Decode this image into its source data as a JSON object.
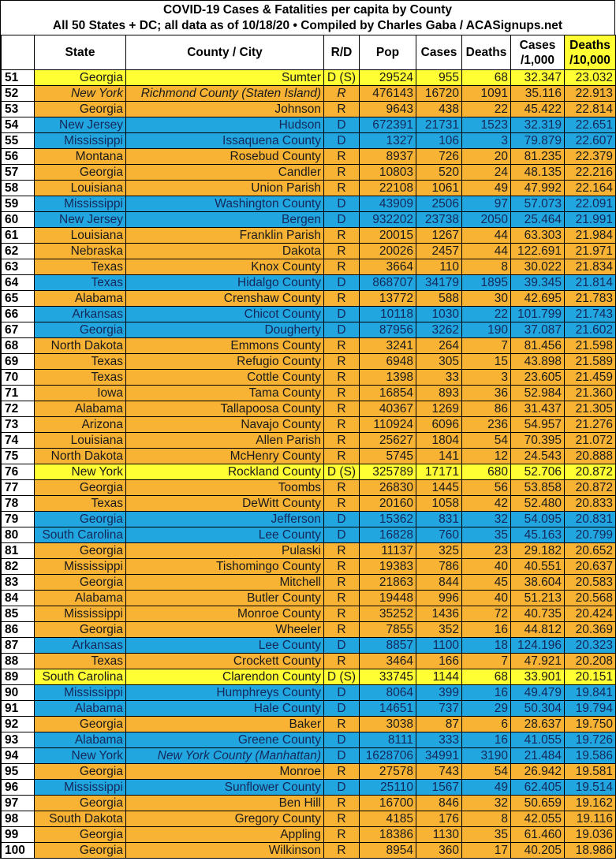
{
  "title_line1": "COVID-19 Cases & Fatalities per capita by County",
  "title_line2": "All 50 States + DC; all data as of 10/18/20  • Compiled by Charles Gaba / ACASignups.net",
  "colors": {
    "R": "#f8b334",
    "D": "#22a6df",
    "swing": "#ffff33",
    "deaths_header": "#ffff33"
  },
  "headers": [
    "",
    "State",
    "County / City",
    "R/D",
    "Pop",
    "Cases",
    "Deaths",
    "Cases\n/1,000",
    "Deaths\n/10,000"
  ],
  "rows": [
    [
      "51",
      "Georgia",
      "Sumter",
      "D (S)",
      "29524",
      "955",
      "68",
      "32.347",
      "23.032",
      "S"
    ],
    [
      "52",
      "New York",
      "Richmond County (Staten Island)",
      "R",
      "476143",
      "16720",
      "1091",
      "35.116",
      "22.913",
      "R",
      "all"
    ],
    [
      "53",
      "Georgia",
      "Johnson",
      "R",
      "9643",
      "438",
      "22",
      "45.422",
      "22.814",
      "R"
    ],
    [
      "54",
      "New Jersey",
      "Hudson",
      "D",
      "672391",
      "21731",
      "1523",
      "32.319",
      "22.651",
      "D"
    ],
    [
      "55",
      "Mississippi",
      "Issaquena County",
      "D",
      "1327",
      "106",
      "3",
      "79.879",
      "22.607",
      "D"
    ],
    [
      "56",
      "Montana",
      "Rosebud County",
      "R",
      "8937",
      "726",
      "20",
      "81.235",
      "22.379",
      "R"
    ],
    [
      "57",
      "Georgia",
      "Candler",
      "R",
      "10803",
      "520",
      "24",
      "48.135",
      "22.216",
      "R"
    ],
    [
      "58",
      "Louisiana",
      "Union Parish",
      "R",
      "22108",
      "1061",
      "49",
      "47.992",
      "22.164",
      "R"
    ],
    [
      "59",
      "Mississippi",
      "Washington County",
      "D",
      "43909",
      "2506",
      "97",
      "57.073",
      "22.091",
      "D"
    ],
    [
      "60",
      "New Jersey",
      "Bergen",
      "D",
      "932202",
      "23738",
      "2050",
      "25.464",
      "21.991",
      "D"
    ],
    [
      "61",
      "Louisiana",
      "Franklin Parish",
      "R",
      "20015",
      "1267",
      "44",
      "63.303",
      "21.984",
      "R"
    ],
    [
      "62",
      "Nebraska",
      "Dakota",
      "R",
      "20026",
      "2457",
      "44",
      "122.691",
      "21.971",
      "R"
    ],
    [
      "63",
      "Texas",
      "Knox County",
      "R",
      "3664",
      "110",
      "8",
      "30.022",
      "21.834",
      "R"
    ],
    [
      "64",
      "Texas",
      "Hidalgo County",
      "D",
      "868707",
      "34179",
      "1895",
      "39.345",
      "21.814",
      "D"
    ],
    [
      "65",
      "Alabama",
      "Crenshaw County",
      "R",
      "13772",
      "588",
      "30",
      "42.695",
      "21.783",
      "R"
    ],
    [
      "66",
      "Arkansas",
      "Chicot County",
      "D",
      "10118",
      "1030",
      "22",
      "101.799",
      "21.743",
      "D"
    ],
    [
      "67",
      "Georgia",
      "Dougherty",
      "D",
      "87956",
      "3262",
      "190",
      "37.087",
      "21.602",
      "D"
    ],
    [
      "68",
      "North Dakota",
      "Emmons County",
      "R",
      "3241",
      "264",
      "7",
      "81.456",
      "21.598",
      "R"
    ],
    [
      "69",
      "Texas",
      "Refugio County",
      "R",
      "6948",
      "305",
      "15",
      "43.898",
      "21.589",
      "R"
    ],
    [
      "70",
      "Texas",
      "Cottle County",
      "R",
      "1398",
      "33",
      "3",
      "23.605",
      "21.459",
      "R"
    ],
    [
      "71",
      "Iowa",
      "Tama County",
      "R",
      "16854",
      "893",
      "36",
      "52.984",
      "21.360",
      "R"
    ],
    [
      "72",
      "Alabama",
      "Tallapoosa County",
      "R",
      "40367",
      "1269",
      "86",
      "31.437",
      "21.305",
      "R"
    ],
    [
      "73",
      "Arizona",
      "Navajo County",
      "R",
      "110924",
      "6096",
      "236",
      "54.957",
      "21.276",
      "R"
    ],
    [
      "74",
      "Louisiana",
      "Allen Parish",
      "R",
      "25627",
      "1804",
      "54",
      "70.395",
      "21.072",
      "R"
    ],
    [
      "75",
      "North Dakota",
      "McHenry County",
      "R",
      "5745",
      "141",
      "12",
      "24.543",
      "20.888",
      "R"
    ],
    [
      "76",
      "New York",
      "Rockland County",
      "D (S)",
      "325789",
      "17171",
      "680",
      "52.706",
      "20.872",
      "S"
    ],
    [
      "77",
      "Georgia",
      "Toombs",
      "R",
      "26830",
      "1445",
      "56",
      "53.858",
      "20.872",
      "R"
    ],
    [
      "78",
      "Texas",
      "DeWitt County",
      "R",
      "20160",
      "1058",
      "42",
      "52.480",
      "20.833",
      "R"
    ],
    [
      "79",
      "Georgia",
      "Jefferson",
      "D",
      "15362",
      "831",
      "32",
      "54.095",
      "20.831",
      "D"
    ],
    [
      "80",
      "South Carolina",
      "Lee County",
      "D",
      "16828",
      "760",
      "35",
      "45.163",
      "20.799",
      "D"
    ],
    [
      "81",
      "Georgia",
      "Pulaski",
      "R",
      "11137",
      "325",
      "23",
      "29.182",
      "20.652",
      "R"
    ],
    [
      "82",
      "Mississippi",
      "Tishomingo County",
      "R",
      "19383",
      "786",
      "40",
      "40.551",
      "20.637",
      "R"
    ],
    [
      "83",
      "Georgia",
      "Mitchell",
      "R",
      "21863",
      "844",
      "45",
      "38.604",
      "20.583",
      "R"
    ],
    [
      "84",
      "Alabama",
      "Butler County",
      "R",
      "19448",
      "996",
      "40",
      "51.213",
      "20.568",
      "R"
    ],
    [
      "85",
      "Mississippi",
      "Monroe County",
      "R",
      "35252",
      "1436",
      "72",
      "40.735",
      "20.424",
      "R"
    ],
    [
      "86",
      "Georgia",
      "Wheeler",
      "R",
      "7855",
      "352",
      "16",
      "44.812",
      "20.369",
      "R"
    ],
    [
      "87",
      "Arkansas",
      "Lee County",
      "D",
      "8857",
      "1100",
      "18",
      "124.196",
      "20.323",
      "D"
    ],
    [
      "88",
      "Texas",
      "Crockett County",
      "R",
      "3464",
      "166",
      "7",
      "47.921",
      "20.208",
      "R"
    ],
    [
      "89",
      "South Carolina",
      "Clarendon County",
      "D (S)",
      "33745",
      "1144",
      "68",
      "33.901",
      "20.151",
      "S"
    ],
    [
      "90",
      "Mississippi",
      "Humphreys County",
      "D",
      "8064",
      "399",
      "16",
      "49.479",
      "19.841",
      "D"
    ],
    [
      "91",
      "Alabama",
      "Hale County",
      "D",
      "14651",
      "737",
      "29",
      "50.304",
      "19.794",
      "D"
    ],
    [
      "92",
      "Georgia",
      "Baker",
      "R",
      "3038",
      "87",
      "6",
      "28.637",
      "19.750",
      "R"
    ],
    [
      "93",
      "Alabama",
      "Greene County",
      "D",
      "8111",
      "333",
      "16",
      "41.055",
      "19.726",
      "D"
    ],
    [
      "94",
      "New York",
      "New York County (Manhattan)",
      "D",
      "1628706",
      "34991",
      "3190",
      "21.484",
      "19.586",
      "D",
      "county"
    ],
    [
      "95",
      "Georgia",
      "Monroe",
      "R",
      "27578",
      "743",
      "54",
      "26.942",
      "19.581",
      "R"
    ],
    [
      "96",
      "Mississippi",
      "Sunflower County",
      "D",
      "25110",
      "1567",
      "49",
      "62.405",
      "19.514",
      "D"
    ],
    [
      "97",
      "Georgia",
      "Ben Hill",
      "R",
      "16700",
      "846",
      "32",
      "50.659",
      "19.162",
      "R"
    ],
    [
      "98",
      "South Dakota",
      "Gregory County",
      "R",
      "4185",
      "176",
      "8",
      "42.055",
      "19.116",
      "R"
    ],
    [
      "99",
      "Georgia",
      "Appling",
      "R",
      "18386",
      "1130",
      "35",
      "61.460",
      "19.036",
      "R"
    ],
    [
      "100",
      "Georgia",
      "Wilkinson",
      "R",
      "8954",
      "360",
      "17",
      "40.205",
      "18.986",
      "R"
    ]
  ]
}
